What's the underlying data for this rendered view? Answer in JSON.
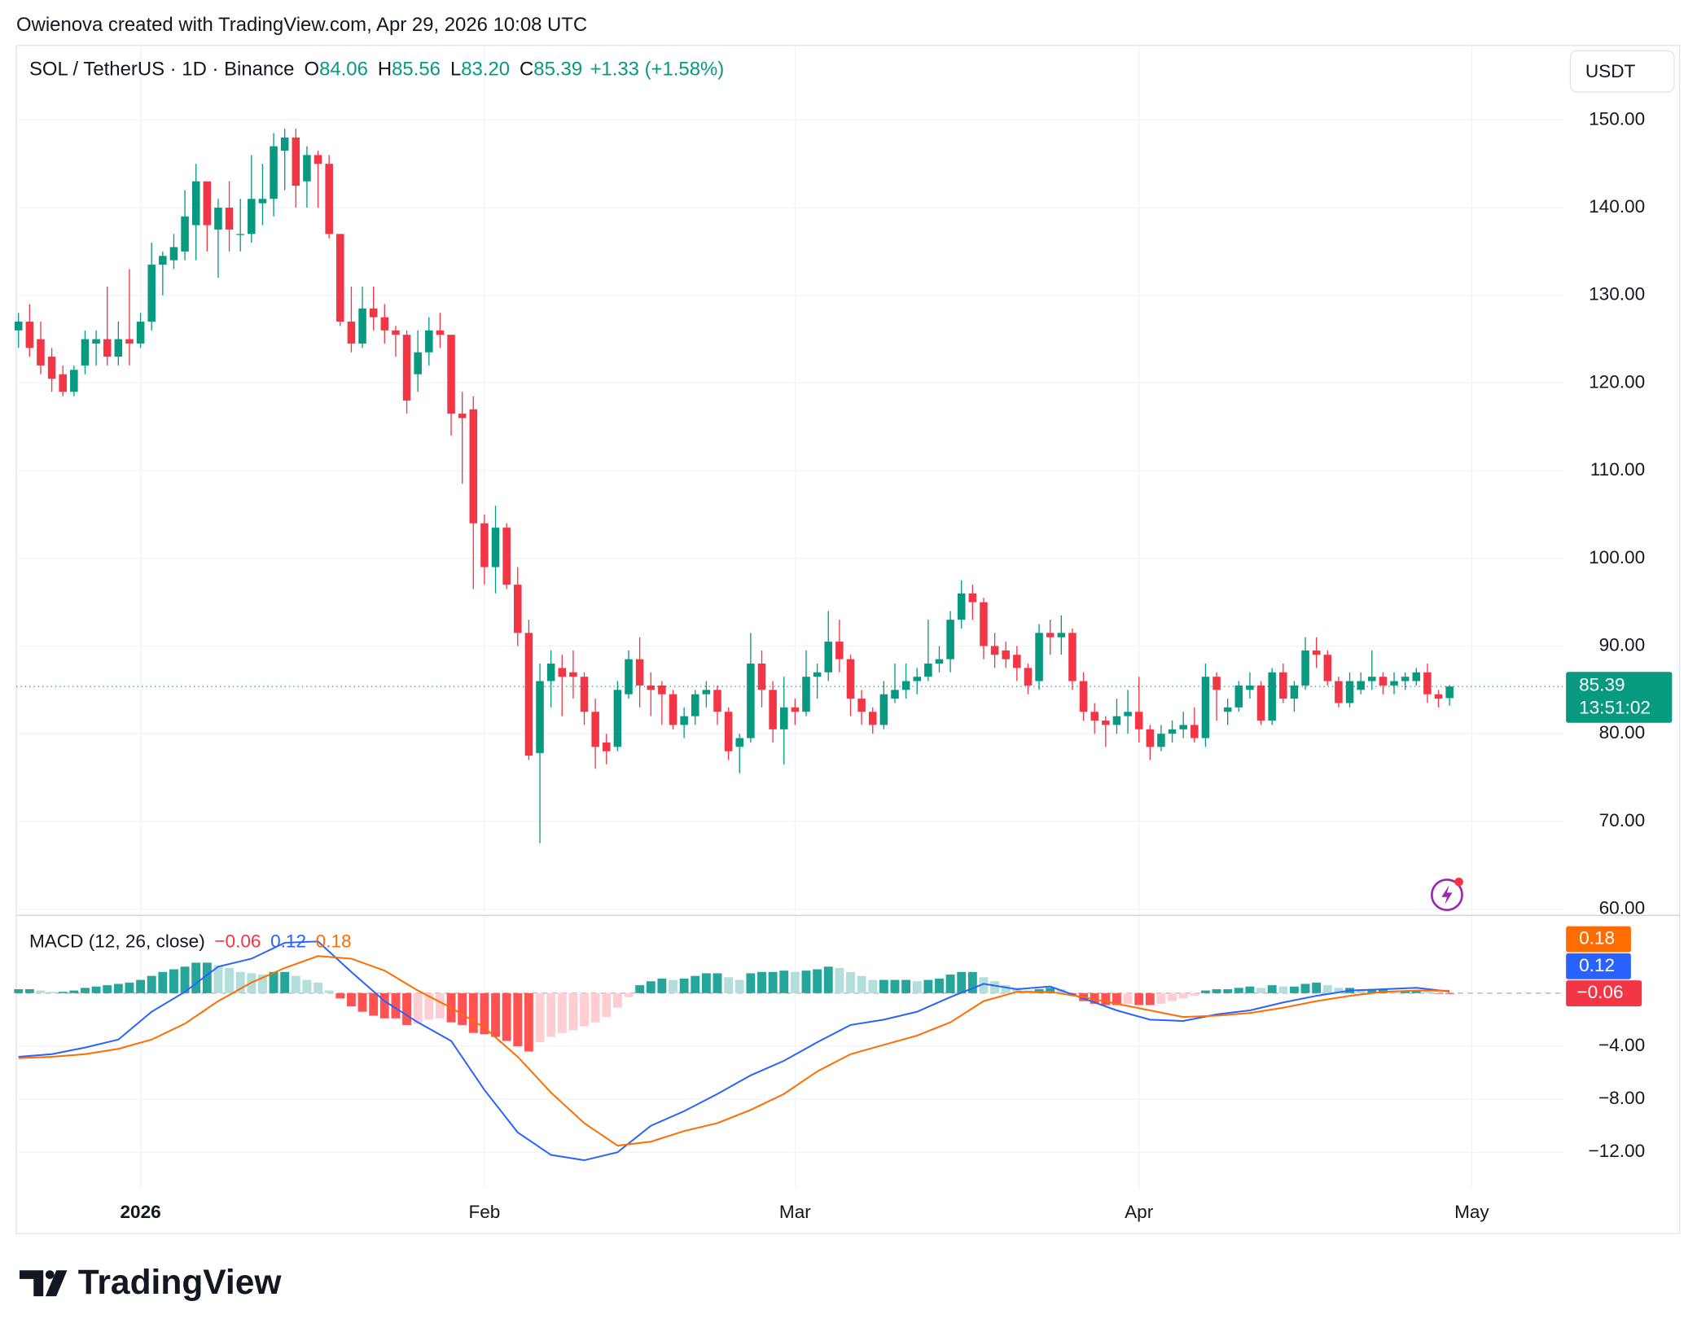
{
  "header": {
    "credit": "Owienova created with TradingView.com, Apr 29, 2026 10:08 UTC",
    "logo": "TradingView"
  },
  "chart_data": [
    {
      "type": "candlestick",
      "title": "SOL / TetherUS · 1D · Binance",
      "legend": [
        {
          "label": "O",
          "value": "84.06"
        },
        {
          "label": "H",
          "value": "85.56"
        },
        {
          "label": "L",
          "value": "83.20"
        },
        {
          "label": "C",
          "value": "85.39"
        }
      ],
      "change": "+1.33 (+1.58%)",
      "currency": "USDT",
      "last_price_label": "85.39",
      "countdown": "13:51:02",
      "up_color": "#089981",
      "down_color": "#f23645",
      "grid": true,
      "x": [
        0,
        1,
        2,
        3,
        4,
        5,
        6,
        7,
        8,
        9,
        10,
        11,
        12,
        13,
        14,
        15,
        16,
        17,
        18,
        19,
        20,
        21,
        22,
        23,
        24,
        25,
        26,
        27,
        28,
        29,
        30,
        31,
        32,
        33,
        34,
        35,
        36,
        37,
        38,
        39,
        40,
        41,
        42,
        43,
        44,
        45,
        46,
        47,
        48,
        49,
        50,
        51,
        52,
        53,
        54,
        55,
        56,
        57,
        58,
        59,
        60,
        61,
        62,
        63,
        64,
        65,
        66,
        67,
        68,
        69,
        70,
        71,
        72,
        73,
        74,
        75,
        76,
        77,
        78,
        79,
        80,
        81,
        82,
        83,
        84,
        85,
        86,
        87,
        88,
        89,
        90,
        91,
        92,
        93,
        94,
        95,
        96,
        97,
        98,
        99,
        100,
        101,
        102,
        103,
        104,
        105,
        106,
        107,
        108,
        109,
        110,
        111,
        112,
        113,
        114,
        115,
        116,
        117,
        118,
        119,
        120,
        121,
        122,
        123,
        124,
        125,
        126,
        127,
        128,
        129
      ],
      "open": [
        126,
        127,
        125,
        123,
        121,
        119,
        122,
        124.5,
        125,
        123,
        125,
        124.5,
        127,
        133.5,
        134,
        135,
        138,
        143,
        137.5,
        140,
        137,
        137,
        140.5,
        141,
        146.5,
        148,
        143,
        146,
        145,
        137,
        127,
        124.5,
        128.5,
        127.5,
        126,
        125.5,
        121,
        123.5,
        126,
        125.5,
        116.5,
        117,
        104,
        99,
        103.5,
        97,
        91.5,
        77.8,
        86,
        87.5,
        87,
        86.5,
        82.5,
        79,
        78.5,
        84.5,
        88.5,
        85.5,
        85.5,
        84.5,
        81,
        82,
        84.5,
        85,
        82.5,
        78.5,
        79.5,
        88,
        85,
        80.5,
        83,
        82.5,
        86.5,
        87,
        90.5,
        88.5,
        84,
        82.5,
        81,
        84,
        85,
        86,
        86.5,
        88,
        88.5,
        93,
        96,
        95,
        90,
        89.5,
        89,
        87.5,
        86,
        91.5,
        91,
        91.5,
        86,
        82.5,
        81.5,
        81,
        82,
        82.5,
        80.5,
        78.5,
        80,
        80.5,
        81,
        79.5,
        86.5,
        82.5,
        83,
        85,
        85.5,
        81.5,
        87,
        84,
        85.5,
        89.5,
        89,
        86,
        83.5,
        85,
        86,
        86.5,
        85.5,
        86,
        86,
        87,
        84.5,
        84.06
      ],
      "high": [
        128,
        129,
        127,
        124,
        122,
        122,
        126,
        126,
        131,
        127,
        133,
        128,
        136,
        135,
        137,
        142,
        145,
        143,
        141,
        143,
        141,
        146,
        145,
        148.5,
        149,
        149,
        147,
        146.5,
        146,
        137,
        131,
        131,
        131,
        129,
        126.5,
        126,
        126,
        127.5,
        128,
        125.5,
        119,
        118.5,
        105,
        106,
        104,
        99,
        93,
        88,
        89.5,
        89,
        89.5,
        87,
        84,
        80,
        86,
        89.5,
        91,
        87,
        86,
        85,
        83,
        85,
        86,
        85.5,
        83,
        80,
        91.5,
        89.5,
        86,
        86.5,
        84,
        89.5,
        88,
        94,
        93,
        89,
        85,
        83,
        86,
        88,
        88,
        87.5,
        93,
        90,
        94,
        97.5,
        97,
        95.5,
        91.5,
        90.5,
        90,
        88,
        92.5,
        93,
        93.5,
        92,
        87,
        83.5,
        82,
        84,
        85,
        86.5,
        81,
        81,
        81.5,
        82.5,
        83,
        88,
        87,
        84,
        86,
        87,
        86,
        87.5,
        88,
        86,
        91,
        91,
        89.5,
        86.5,
        87,
        87,
        89.5,
        87,
        87,
        87,
        87.5,
        88,
        85,
        85.56
      ],
      "low": [
        124,
        123,
        121,
        119,
        118.5,
        118.5,
        121,
        122,
        122,
        122,
        122,
        124,
        126,
        130,
        133,
        134,
        134,
        135,
        132,
        135,
        135,
        136,
        138,
        139,
        142,
        140,
        140,
        140,
        136.5,
        126.5,
        123.5,
        124,
        126,
        124.5,
        123,
        116.5,
        119,
        122,
        124,
        114,
        108.5,
        96.5,
        97,
        96,
        96.5,
        90,
        77,
        67.5,
        83,
        82,
        84,
        81,
        76,
        76.5,
        78,
        84,
        83,
        82,
        81,
        80.5,
        79.5,
        81,
        83,
        81,
        77,
        75.5,
        79,
        83,
        79,
        76.5,
        81,
        82,
        84,
        86,
        87,
        82,
        81,
        80,
        80.5,
        83.5,
        84,
        84.5,
        86,
        87,
        87,
        92,
        93,
        88.5,
        87.5,
        87.5,
        86,
        84.5,
        85,
        89,
        89,
        85,
        81.5,
        80,
        78.5,
        80,
        80,
        79,
        77,
        78,
        79,
        79.5,
        79,
        78.5,
        81.5,
        81,
        82.5,
        84,
        81,
        81,
        83.5,
        82.5,
        85,
        87.5,
        85.5,
        83,
        83,
        84.5,
        85,
        84.5,
        84.5,
        85,
        85.5,
        83.5,
        83,
        83.2
      ],
      "close": [
        127,
        124,
        122,
        120.5,
        119,
        121.5,
        125,
        125,
        123,
        125,
        124.5,
        127,
        133.5,
        134.5,
        135.5,
        139,
        143,
        138,
        140,
        137.5,
        137,
        141,
        141,
        147,
        148,
        142.5,
        146,
        145,
        137,
        127,
        124.5,
        128.5,
        127.5,
        126,
        125.5,
        118,
        123.5,
        126,
        125.5,
        116.5,
        116,
        104,
        99,
        103.5,
        97,
        91.5,
        77.5,
        86,
        88,
        86.5,
        86.5,
        82.5,
        78.5,
        78,
        85,
        88.5,
        85.5,
        85,
        84.5,
        81,
        82,
        84.5,
        85,
        82.5,
        78,
        79.5,
        88,
        85,
        80.5,
        83,
        82.5,
        86.5,
        87,
        90.5,
        88.5,
        84,
        82.5,
        81,
        84.5,
        85,
        86,
        86.5,
        88,
        88.5,
        93,
        96,
        95,
        90,
        89,
        88.5,
        87.5,
        85.5,
        91.5,
        91,
        91.5,
        86,
        82.5,
        81.5,
        81,
        82,
        82.5,
        80.5,
        78.5,
        80,
        80.5,
        81,
        79.5,
        86.5,
        85,
        83,
        85.5,
        85.5,
        81.5,
        87,
        84,
        85.5,
        89.5,
        89,
        86,
        83.5,
        86,
        86,
        86.5,
        85.5,
        86,
        86.5,
        87,
        84.5,
        84,
        85.39
      ],
      "xlim": [
        -0.2,
        139.3
      ],
      "xticks": [
        {
          "value": 11,
          "label": "2026"
        },
        {
          "value": 42,
          "label": "Feb"
        },
        {
          "value": 70,
          "label": "Mar"
        },
        {
          "value": 101,
          "label": "Apr"
        },
        {
          "value": 131,
          "label": "May"
        }
      ],
      "ylim": [
        59.4,
        158.5
      ],
      "yticks": [
        {
          "value": 60,
          "label": "60.00"
        },
        {
          "value": 70,
          "label": "70.00"
        },
        {
          "value": 80,
          "label": "80.00"
        },
        {
          "value": 90,
          "label": "90.00"
        },
        {
          "value": 100,
          "label": "100.00"
        },
        {
          "value": 110,
          "label": "110.00"
        },
        {
          "value": 120,
          "label": "120.00"
        },
        {
          "value": 130,
          "label": "130.00"
        },
        {
          "value": 140,
          "label": "140.00"
        },
        {
          "value": 150,
          "label": "150.00"
        }
      ]
    },
    {
      "type": "macd",
      "title": "MACD (12, 26, close)",
      "histogram": {
        "values": [
          0.3,
          0.3,
          0.2,
          0.1,
          0.1,
          0.2,
          0.4,
          0.5,
          0.6,
          0.7,
          0.8,
          1.0,
          1.3,
          1.6,
          1.8,
          2.0,
          2.3,
          2.3,
          2.1,
          1.9,
          1.6,
          1.5,
          1.4,
          1.6,
          1.6,
          1.3,
          1.0,
          0.8,
          0.2,
          -0.4,
          -1.0,
          -1.4,
          -1.7,
          -1.9,
          -1.9,
          -2.4,
          -2.3,
          -2.0,
          -1.9,
          -2.2,
          -2.4,
          -3.0,
          -3.1,
          -3.3,
          -3.6,
          -4.0,
          -4.4,
          -3.7,
          -3.3,
          -3.0,
          -2.8,
          -2.5,
          -2.2,
          -1.8,
          -1.1,
          -0.3,
          0.6,
          0.9,
          1.1,
          1.0,
          1.1,
          1.3,
          1.5,
          1.5,
          1.2,
          1.0,
          1.5,
          1.6,
          1.6,
          1.7,
          1.6,
          1.7,
          1.8,
          2.0,
          1.9,
          1.6,
          1.3,
          1.0,
          1.0,
          1.0,
          1.0,
          0.9,
          1.0,
          1.1,
          1.4,
          1.6,
          1.6,
          1.2,
          0.9,
          0.6,
          0.4,
          0.2,
          0.3,
          0.4,
          0.3,
          -0.1,
          -0.6,
          -0.8,
          -0.9,
          -0.9,
          -0.8,
          -0.9,
          -0.9,
          -0.8,
          -0.6,
          -0.4,
          -0.2,
          0.2,
          0.3,
          0.3,
          0.4,
          0.5,
          0.4,
          0.6,
          0.5,
          0.5,
          0.7,
          0.8,
          0.6,
          0.4,
          0.4,
          0.3,
          0.3,
          0.3,
          0.2,
          0.2,
          0.2,
          0.1,
          -0.05,
          -0.06
        ],
        "last_label": "−0.06",
        "color": "#f23645",
        "up_strong": "#26a69a",
        "up_weak": "#b2dfdb",
        "down_strong": "#ff5252",
        "down_weak": "#ffcdd2"
      },
      "lines": [
        {
          "color": "#2962ff",
          "last_label": "0.12",
          "x": [
            0,
            3,
            6,
            9,
            12,
            15,
            18,
            21,
            24,
            27,
            30,
            33,
            36,
            39,
            42,
            45,
            48,
            51,
            54,
            57,
            60,
            63,
            66,
            69,
            72,
            75,
            78,
            81,
            84,
            87,
            90,
            93,
            96,
            99,
            102,
            105,
            108,
            111,
            114,
            117,
            120,
            123,
            126,
            129
          ],
          "values": [
            -4.8,
            -4.6,
            -4.1,
            -3.5,
            -1.4,
            0.1,
            2.0,
            2.6,
            3.8,
            3.9,
            1.6,
            -0.6,
            -2.2,
            -3.6,
            -7.3,
            -10.5,
            -12.2,
            -12.6,
            -12.0,
            -10.0,
            -8.9,
            -7.6,
            -6.2,
            -5.1,
            -3.7,
            -2.4,
            -2.0,
            -1.4,
            -0.3,
            0.7,
            0.3,
            0.5,
            -0.4,
            -1.3,
            -2.0,
            -2.1,
            -1.6,
            -1.3,
            -0.7,
            -0.2,
            0.2,
            0.3,
            0.4,
            0.12
          ]
        },
        {
          "color": "#ff6d00",
          "last_label": "0.18",
          "x": [
            0,
            3,
            6,
            9,
            12,
            15,
            18,
            21,
            24,
            27,
            30,
            33,
            36,
            39,
            42,
            45,
            48,
            51,
            54,
            57,
            60,
            63,
            66,
            69,
            72,
            75,
            78,
            81,
            84,
            87,
            90,
            93,
            96,
            99,
            102,
            105,
            108,
            111,
            114,
            117,
            120,
            123,
            126,
            129
          ],
          "values": [
            -4.9,
            -4.8,
            -4.6,
            -4.2,
            -3.5,
            -2.3,
            -0.6,
            0.8,
            1.9,
            2.8,
            2.6,
            1.7,
            0.2,
            -1.1,
            -2.6,
            -4.8,
            -7.5,
            -9.8,
            -11.5,
            -11.2,
            -10.4,
            -9.8,
            -8.8,
            -7.6,
            -5.9,
            -4.6,
            -3.9,
            -3.2,
            -2.2,
            -0.6,
            0.1,
            0.1,
            -0.3,
            -0.8,
            -1.3,
            -1.8,
            -1.7,
            -1.5,
            -1.1,
            -0.6,
            -0.2,
            0.1,
            0.2,
            0.18
          ]
        }
      ],
      "ylim": [
        -14.7,
        5.7
      ],
      "yticks": [
        {
          "value": -12,
          "label": "−12.00"
        },
        {
          "value": -8,
          "label": "−8.00"
        },
        {
          "value": -4,
          "label": "−4.00"
        }
      ]
    }
  ]
}
